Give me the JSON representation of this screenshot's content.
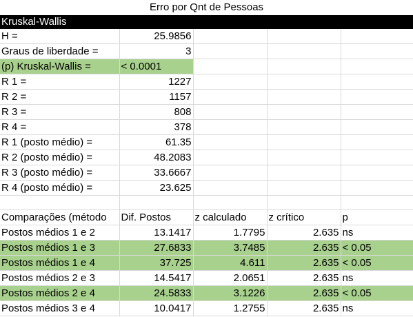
{
  "title": "Erro por Qnt de Pessoas",
  "section_header": "Kruskal-Wallis",
  "stats": [
    {
      "label": "H =",
      "value": "25.9856",
      "highlight": false,
      "align": "right"
    },
    {
      "label": "Graus de liberdade =",
      "value": "3",
      "highlight": false,
      "align": "right"
    },
    {
      "label": "(p) Kruskal-Wallis =",
      "value": "< 0.0001",
      "highlight": true,
      "align": "left"
    },
    {
      "label": "R 1 =",
      "value": "1227",
      "highlight": false,
      "align": "right"
    },
    {
      "label": "R 2 =",
      "value": "1157",
      "highlight": false,
      "align": "right"
    },
    {
      "label": "R 3 =",
      "value": "808",
      "highlight": false,
      "align": "right"
    },
    {
      "label": "R 4 =",
      "value": "378",
      "highlight": false,
      "align": "right"
    },
    {
      "label": "R 1 (posto médio) =",
      "value": "61.35",
      "highlight": false,
      "align": "right"
    },
    {
      "label": "R 2 (posto médio) =",
      "value": "48.2083",
      "highlight": false,
      "align": "right"
    },
    {
      "label": "R 3 (posto médio) =",
      "value": "33.6667",
      "highlight": false,
      "align": "right"
    },
    {
      "label": "R 4 (posto médio) =",
      "value": "23.625",
      "highlight": false,
      "align": "right"
    }
  ],
  "comparisons": {
    "headers": [
      "Comparações (método",
      "Dif. Postos",
      "z calculado",
      "z crítico",
      "p"
    ],
    "rows": [
      {
        "cells": [
          "Postos médios  1 e 2",
          "13.1417",
          "1.7795",
          "2.635",
          "ns"
        ],
        "highlight": false
      },
      {
        "cells": [
          "Postos médios  1 e 3",
          "27.6833",
          "3.7485",
          "2.635",
          "< 0.05"
        ],
        "highlight": true
      },
      {
        "cells": [
          "Postos médios  1 e 4",
          "37.725",
          "4.611",
          "2.635",
          "< 0.05"
        ],
        "highlight": true
      },
      {
        "cells": [
          "Postos médios  2 e 3",
          "14.5417",
          "2.0651",
          "2.635",
          "ns"
        ],
        "highlight": false
      },
      {
        "cells": [
          "Postos médios  2 e 4",
          "24.5833",
          "3.1226",
          "2.635",
          "< 0.05"
        ],
        "highlight": true
      },
      {
        "cells": [
          "Postos médios  3 e 4",
          "10.0417",
          "1.2755",
          "2.635",
          "ns"
        ],
        "highlight": false
      }
    ]
  },
  "colors": {
    "highlight": "#a9d18e",
    "header_bg": "#000000",
    "grid_line": "#d9d9d9"
  }
}
